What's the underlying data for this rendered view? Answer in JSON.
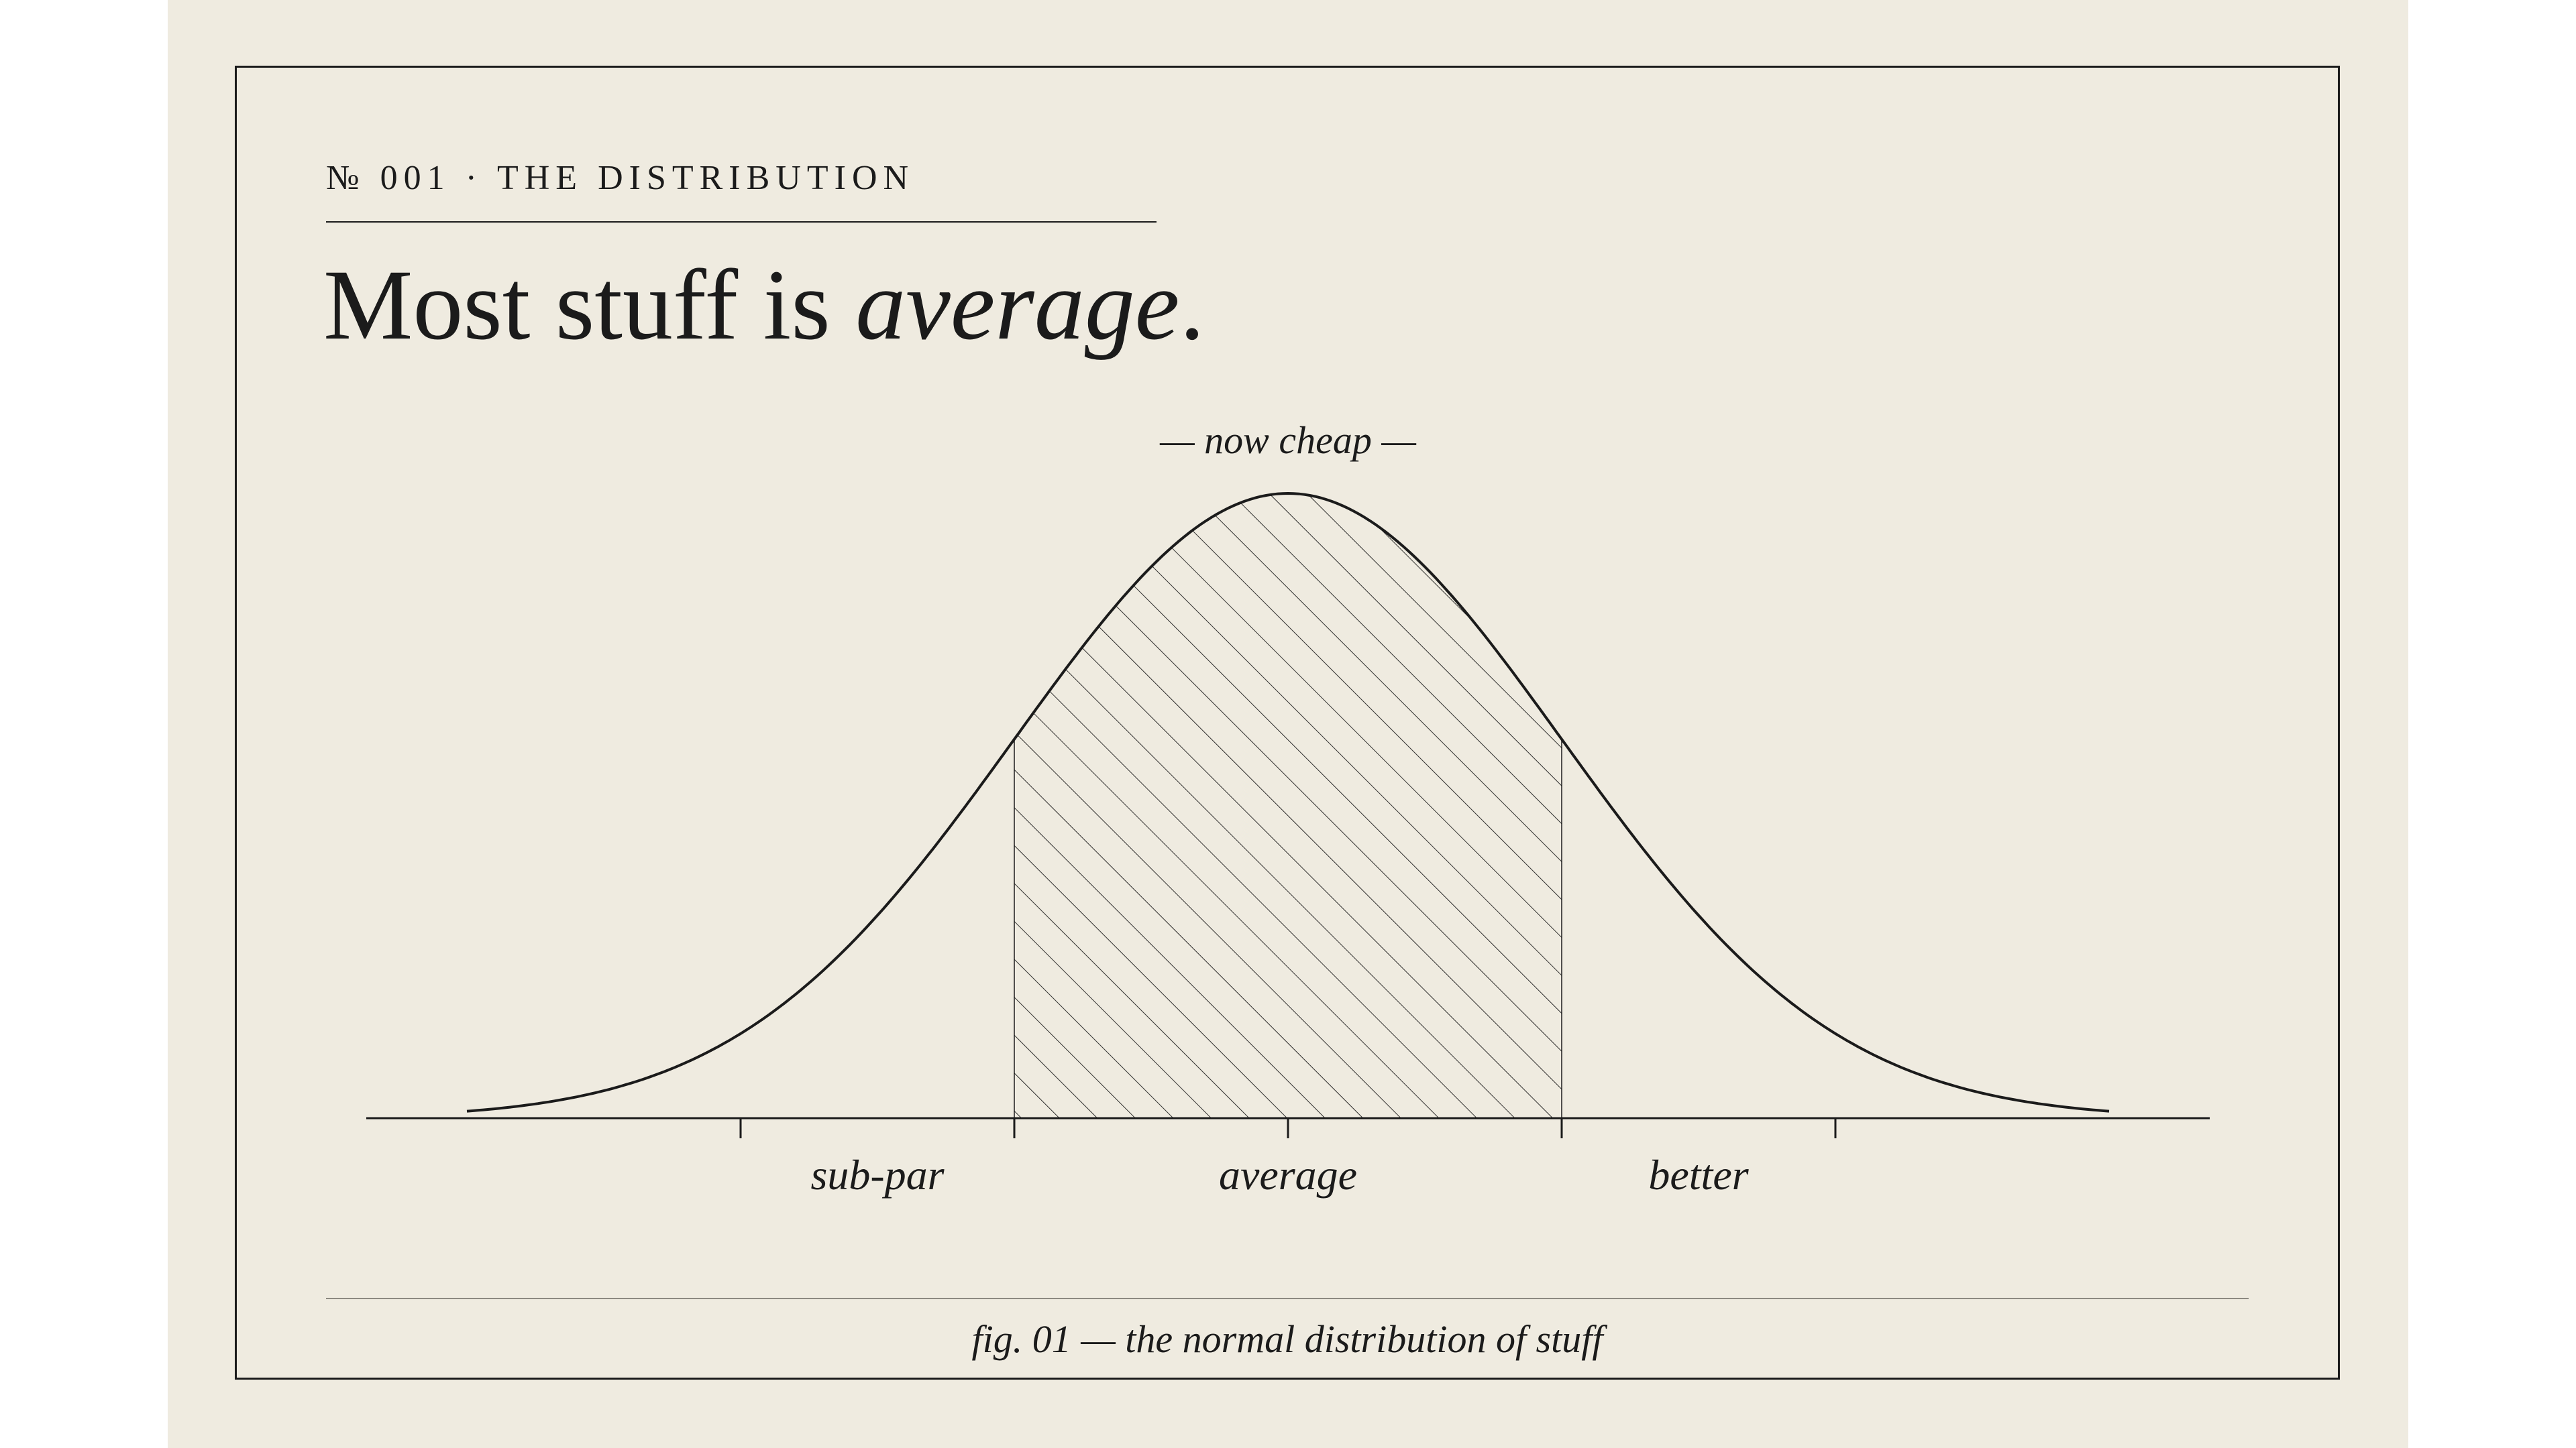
{
  "header": {
    "kicker": "№ 001 · THE DISTRIBUTION",
    "headline_lead": "Most stuff is ",
    "headline_emphasis": "average",
    "headline_end": "."
  },
  "caption": "fig. 01 — the normal distribution of stuff",
  "colors": {
    "background": "#efebe0",
    "ink": "#1b1b1b",
    "rule_light": "#8d8a82"
  },
  "chart_data": {
    "type": "area",
    "curve": "normal distribution (bell curve)",
    "mean": 0,
    "sd": 1,
    "xlim": [
      -3,
      3
    ],
    "grid": false,
    "y_axis": false,
    "ticks": [
      -2,
      -1,
      0,
      1,
      2
    ],
    "tick_labels": [
      {
        "text": "sub-par",
        "x": -1.5
      },
      {
        "text": "average",
        "x": 0
      },
      {
        "text": "better",
        "x": 1.5
      }
    ],
    "shaded_region": {
      "from": -1,
      "to": 1,
      "style": "diagonal hatch",
      "annotation": "— now cheap —"
    }
  }
}
